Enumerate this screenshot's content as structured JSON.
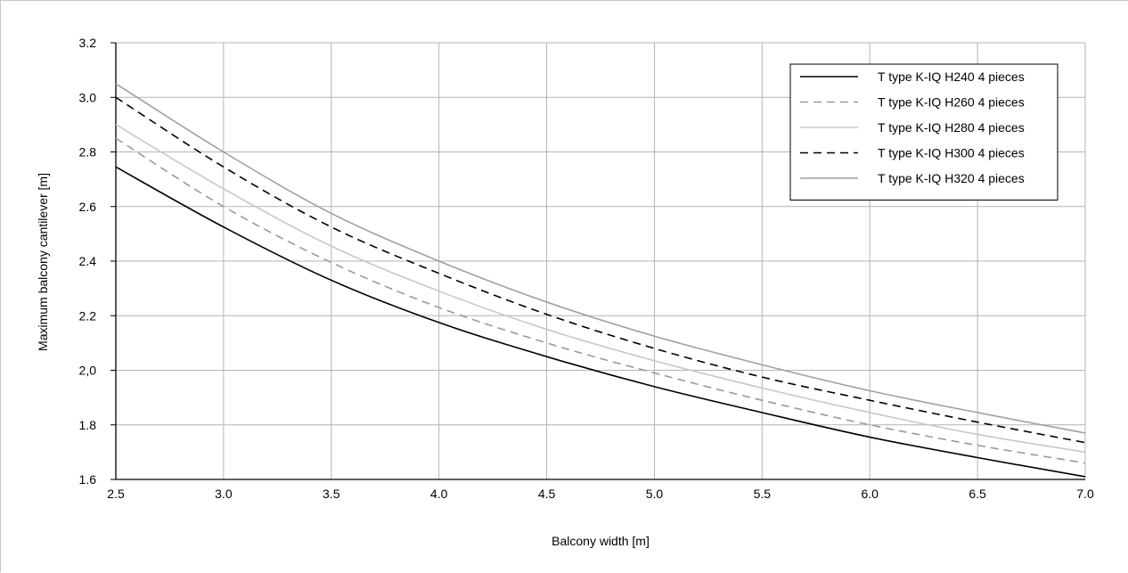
{
  "chart_data": {
    "type": "line",
    "xlabel": "Balcony width [m]",
    "ylabel": "Maximum balcony cantilever [m]",
    "xlim": [
      2.5,
      7.0
    ],
    "ylim": [
      1.6,
      3.2
    ],
    "x_ticks": [
      "2.5",
      "3.0",
      "3.5",
      "4.0",
      "4.5",
      "5.0",
      "5.5",
      "6.0",
      "6.5",
      "7.0"
    ],
    "y_ticks": [
      "1.6",
      "1.8",
      "2,0",
      "2.2",
      "2.4",
      "2.6",
      "2.8",
      "3.0",
      "3.2"
    ],
    "grid": true,
    "legend_position": "top-right",
    "x": [
      2.5,
      3.0,
      3.5,
      4.0,
      4.5,
      5.0,
      5.5,
      6.0,
      6.5,
      7.0
    ],
    "series": [
      {
        "name": "T type K-IQ H240 4 pieces",
        "color": "#000000",
        "dash": "solid",
        "values": [
          2.745,
          2.525,
          2.33,
          2.175,
          2.05,
          1.94,
          1.845,
          1.755,
          1.68,
          1.61
        ]
      },
      {
        "name": "T type K-IQ H260 4 pieces",
        "color": "#999999",
        "dash": "dashed",
        "values": [
          2.85,
          2.6,
          2.395,
          2.23,
          2.1,
          1.99,
          1.89,
          1.8,
          1.725,
          1.66
        ]
      },
      {
        "name": "T type K-IQ H280 4 pieces",
        "color": "#c8c8c8",
        "dash": "solid",
        "values": [
          2.9,
          2.665,
          2.455,
          2.29,
          2.15,
          2.035,
          1.935,
          1.845,
          1.765,
          1.7
        ]
      },
      {
        "name": "T type K-IQ H300 4 pieces",
        "color": "#000000",
        "dash": "dashed",
        "values": [
          3.0,
          2.745,
          2.525,
          2.355,
          2.205,
          2.08,
          1.975,
          1.89,
          1.81,
          1.735
        ]
      },
      {
        "name": "T type K-IQ H320 4 pieces",
        "color": "#a0a0a0",
        "dash": "solid",
        "values": [
          3.05,
          2.8,
          2.575,
          2.4,
          2.25,
          2.125,
          2.02,
          1.925,
          1.845,
          1.77
        ]
      }
    ]
  }
}
